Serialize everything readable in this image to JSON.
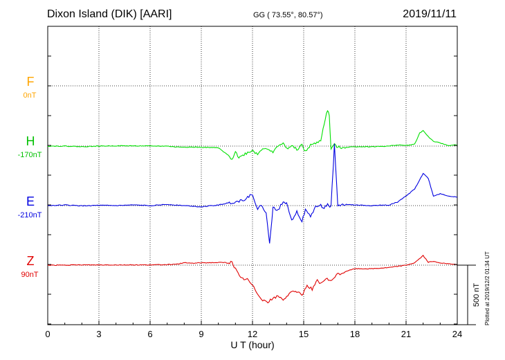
{
  "header": {
    "title": "Dixon Island (DIK)  [AARI]",
    "coords": "GG ( 73.55°,  80.57°)",
    "date": "2019/11/11",
    "plotted": "Plotted at 2019/12/2 01:34 UT"
  },
  "colors": {
    "F": "#ffa500",
    "H": "#00e000",
    "E": "#0000e0",
    "Z": "#e00000",
    "grid": "#000000"
  },
  "chart_data": {
    "type": "line",
    "title": "Dixon Island (DIK)  [AARI]",
    "xlabel": "U T (hour)",
    "ylabel": "",
    "xlim": [
      0,
      24
    ],
    "x_ticks": [
      0,
      3,
      6,
      9,
      12,
      15,
      18,
      21,
      24
    ],
    "grid": true,
    "scale_bar": "500 nT",
    "components": [
      {
        "name": "F",
        "baseline": "0nT",
        "values": []
      },
      {
        "name": "H",
        "baseline": "-170nT",
        "x": [
          0,
          1,
          2,
          3,
          4,
          5,
          6,
          7,
          7.5,
          8,
          9,
          10,
          10.5,
          10.8,
          11,
          11.2,
          11.5,
          12,
          12.3,
          12.6,
          12.9,
          13.2,
          13.5,
          13.8,
          14,
          14.3,
          14.6,
          14.9,
          15.1,
          15.4,
          15.7,
          16,
          16.2,
          16.4,
          16.5,
          16.6,
          16.8,
          17,
          17.5,
          18,
          19,
          20,
          20.5,
          21,
          21.5,
          21.8,
          22,
          22.3,
          22.6,
          23,
          23.5,
          24
        ],
        "values": [
          -170,
          -170,
          -175,
          -170,
          -168,
          -168,
          -170,
          -170,
          -178,
          -178,
          -180,
          -185,
          -240,
          -280,
          -210,
          -270,
          -240,
          -205,
          -240,
          -185,
          -190,
          -230,
          -160,
          -150,
          -190,
          -170,
          -200,
          -160,
          -220,
          -160,
          -150,
          -120,
          20,
          135,
          80,
          -190,
          -160,
          -180,
          -180,
          -175,
          -175,
          -170,
          -160,
          -165,
          -155,
          -60,
          -40,
          -90,
          -130,
          -145,
          -165,
          -160
        ]
      },
      {
        "name": "E",
        "baseline": "-210nT",
        "x": [
          0,
          1,
          2,
          3,
          4,
          5,
          6,
          7,
          8,
          9,
          10,
          10.5,
          11,
          11.5,
          12,
          12.3,
          12.5,
          12.8,
          13,
          13.2,
          13.5,
          13.8,
          14,
          14.3,
          14.6,
          14.9,
          15.1,
          15.4,
          15.7,
          16,
          16.2,
          16.4,
          16.6,
          16.8,
          17,
          17.5,
          18,
          19,
          20,
          20.5,
          21,
          21.5,
          22,
          22.3,
          22.6,
          23,
          23.5,
          24
        ],
        "values": [
          -210,
          -205,
          -212,
          -208,
          -210,
          -205,
          -210,
          -200,
          -210,
          -220,
          -205,
          -190,
          -180,
          -160,
          -110,
          -250,
          -200,
          -280,
          -520,
          -230,
          -250,
          -170,
          -190,
          -330,
          -260,
          -340,
          -250,
          -300,
          -220,
          -210,
          -230,
          -200,
          -220,
          300,
          -210,
          -200,
          -205,
          -210,
          -205,
          -180,
          -130,
          -70,
          60,
          20,
          -130,
          -110,
          -130,
          -140
        ]
      },
      {
        "name": "Z",
        "baseline": "90nT",
        "x": [
          0,
          1,
          2,
          3,
          4,
          5,
          6,
          7,
          7.5,
          8,
          8.5,
          9,
          10,
          10.8,
          11,
          11.3,
          11.7,
          12,
          12.3,
          12.6,
          12.9,
          13.2,
          13.5,
          13.8,
          14,
          14.3,
          14.6,
          14.9,
          15.2,
          15.5,
          15.8,
          16,
          16.3,
          16.6,
          16.9,
          17.2,
          17.5,
          18,
          19,
          20,
          20.5,
          21,
          21.5,
          22,
          22.3,
          22.6,
          23,
          23.5,
          24
        ],
        "values": [
          90,
          90,
          92,
          92,
          92,
          92,
          92,
          95,
          96,
          110,
          106,
          110,
          112,
          112,
          60,
          -20,
          -30,
          -80,
          -150,
          -200,
          -220,
          -190,
          -170,
          -200,
          -170,
          -140,
          -130,
          -160,
          -80,
          -110,
          -40,
          -70,
          -20,
          -50,
          10,
          20,
          40,
          60,
          60,
          70,
          80,
          90,
          110,
          170,
          115,
          120,
          110,
          100,
          95
        ]
      }
    ]
  }
}
